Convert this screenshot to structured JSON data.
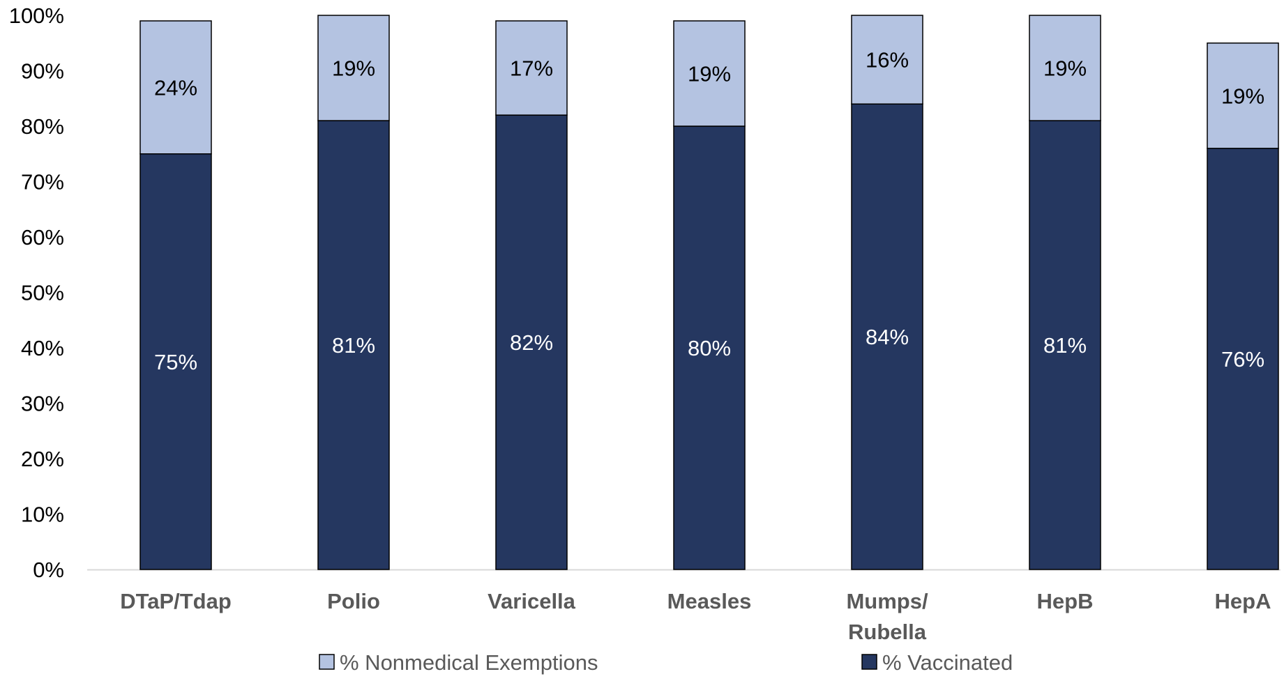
{
  "chart_data": {
    "type": "bar",
    "stacked": true,
    "categories": [
      "DTaP/Tdap",
      "Polio",
      "Varicella",
      "Measles",
      "Mumps/\nRubella",
      "HepB",
      "HepA"
    ],
    "series": [
      {
        "name": "% Vaccinated",
        "values": [
          75,
          81,
          82,
          80,
          84,
          81,
          76
        ],
        "color": "#253760",
        "label_color": "#ffffff"
      },
      {
        "name": "% Nonmedical Exemptions",
        "values": [
          24,
          19,
          17,
          19,
          16,
          19,
          19
        ],
        "color": "#b4c3e1",
        "label_color": "#000000"
      }
    ],
    "data_labels": [
      [
        "75%",
        "81%",
        "82%",
        "80%",
        "84%",
        "81%",
        "76%"
      ],
      [
        "24%",
        "19%",
        "17%",
        "19%",
        "16%",
        "19%",
        "19%"
      ]
    ],
    "y_ticks": [
      "0%",
      "10%",
      "20%",
      "30%",
      "40%",
      "50%",
      "60%",
      "70%",
      "80%",
      "90%",
      "100%"
    ],
    "ylim": [
      0,
      100
    ],
    "title": "",
    "xlabel": "",
    "ylabel": "",
    "grid": false,
    "legend": {
      "position": "bottom",
      "entries": [
        "% Nonmedical Exemptions",
        "% Vaccinated"
      ]
    }
  }
}
